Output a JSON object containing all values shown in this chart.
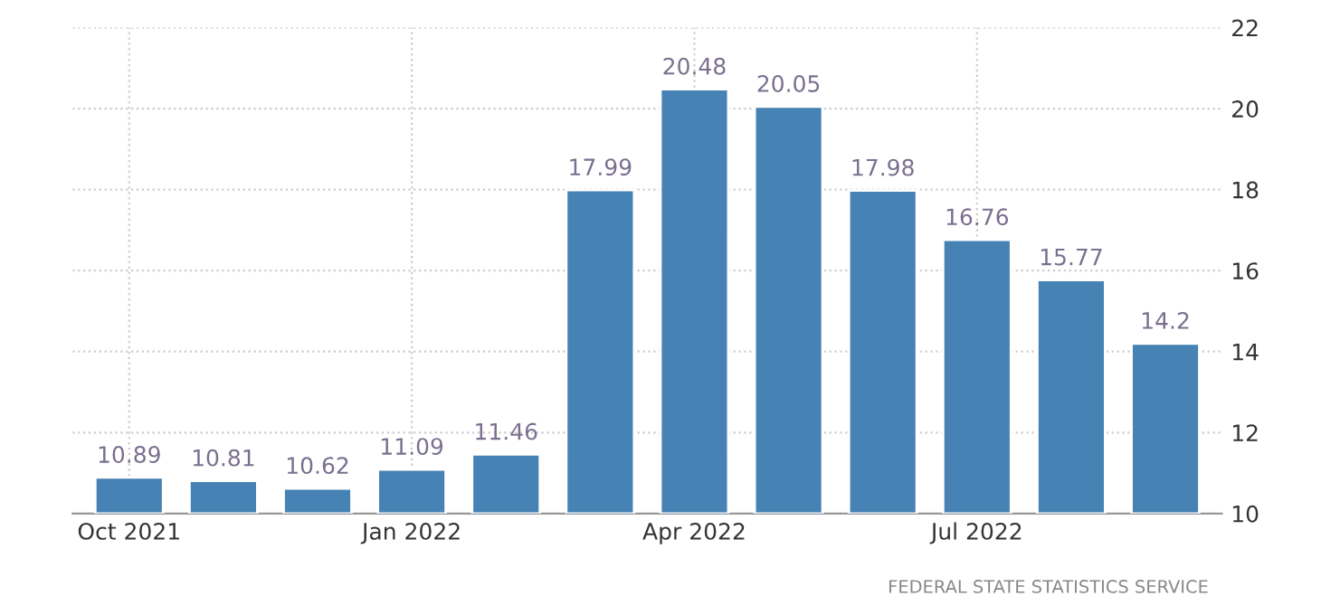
{
  "chart_data": {
    "type": "bar",
    "categories": [
      "Oct 2021",
      null,
      null,
      "Jan 2022",
      null,
      null,
      "Apr 2022",
      null,
      null,
      "Jul 2022",
      null,
      null
    ],
    "values": [
      10.89,
      10.81,
      10.62,
      11.09,
      11.46,
      17.99,
      20.48,
      20.05,
      17.98,
      16.76,
      15.77,
      14.2
    ],
    "color": "#4682b4",
    "ylim": [
      10,
      22
    ],
    "yticks": [
      10,
      12,
      14,
      16,
      18,
      20,
      22
    ],
    "grid": true,
    "data_labels": true,
    "annotations": [
      "FEDERAL STATE STATISTICS SERVICE"
    ]
  }
}
